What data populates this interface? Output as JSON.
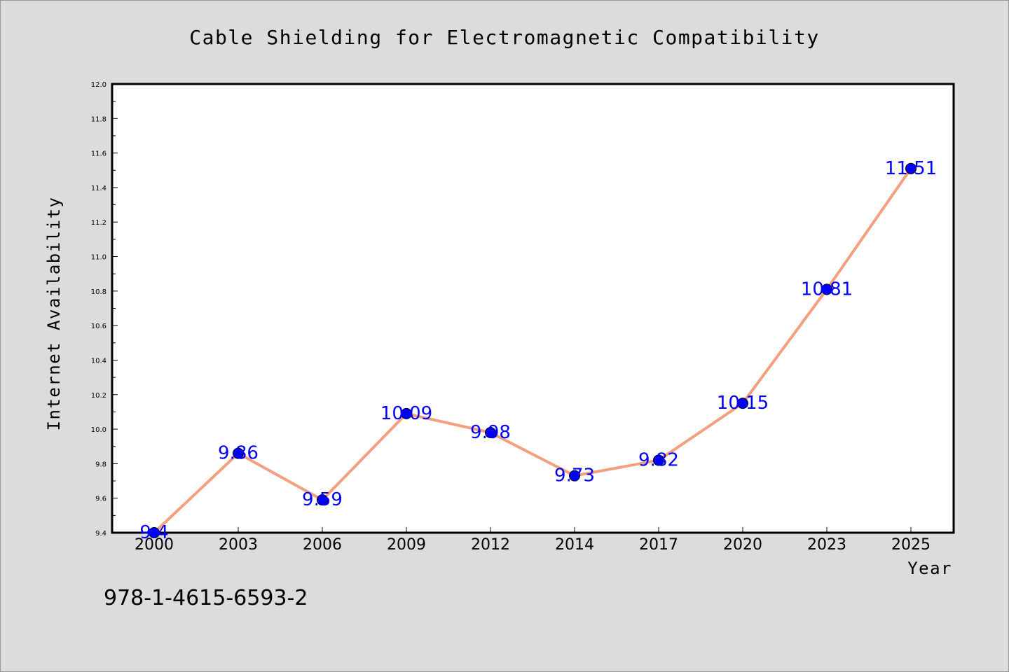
{
  "chart_data": {
    "type": "line",
    "title": "Cable Shielding for Electromagnetic Compatibility",
    "xlabel": "Year",
    "ylabel": "Internet Availability",
    "categories": [
      "2000",
      "2003",
      "2006",
      "2009",
      "2012",
      "2014",
      "2017",
      "2020",
      "2023",
      "2025"
    ],
    "values": [
      9.4,
      9.86,
      9.59,
      10.09,
      9.98,
      9.73,
      9.82,
      10.15,
      10.81,
      11.51
    ],
    "value_labels": [
      "9.4",
      "9.86",
      "9.59",
      "10.09",
      "9.98",
      "9.73",
      "9.82",
      "10.15",
      "10.81",
      "11.51"
    ],
    "ylim": [
      9.4,
      12.0
    ],
    "yticks": [
      "9.4",
      "9.6",
      "9.8",
      "10.0",
      "10.2",
      "10.4",
      "10.6",
      "10.8",
      "11.0",
      "11.2",
      "11.4",
      "11.6",
      "11.8",
      "12.0"
    ],
    "grid": false,
    "line_color": "#f4a07e",
    "marker_color": "#0000ff",
    "label_color": "#0000ff"
  },
  "footer": {
    "isbn": "978-1-4615-6593-2"
  }
}
